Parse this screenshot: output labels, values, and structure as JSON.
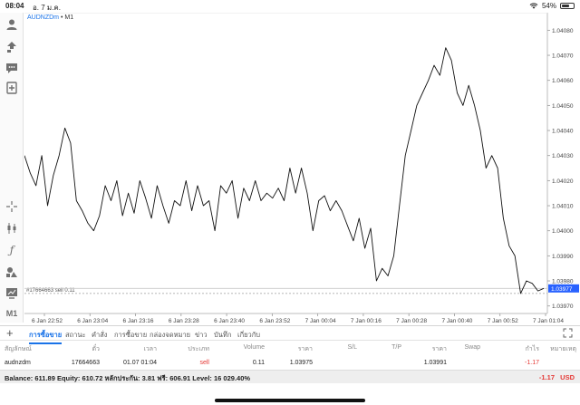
{
  "status": {
    "time": "08:04",
    "date": "อ. 7 ม.ค.",
    "battery": "54%",
    "battery_level": 0.54
  },
  "chart": {
    "symbol": "AUDNZDm",
    "timeframe": "M1",
    "price_labels": [
      "1.04080",
      "1.04070",
      "1.04060",
      "1.04050",
      "1.04040",
      "1.04030",
      "1.04020",
      "1.04010",
      "1.04000",
      "1.03990",
      "1.03980",
      "1.03970"
    ],
    "current_price": "1.03977",
    "order_label": "#17664663 sell 0.11",
    "time_labels": [
      "6 Jan 22:52",
      "6 Jan 23:04",
      "6 Jan 23:16",
      "6 Jan 23:28",
      "6 Jan 23:40",
      "6 Jan 23:52",
      "7 Jan 00:04",
      "7 Jan 00:16",
      "7 Jan 00:28",
      "7 Jan 00:40",
      "7 Jan 00:52",
      "7 Jan 01:04"
    ]
  },
  "chart_data": {
    "type": "line",
    "title": "AUDNZDm • M1",
    "xlabel": "",
    "ylabel": "",
    "ylim": [
      1.03967,
      1.04087
    ],
    "x_start": "6 Jan 22:52",
    "x_end": "7 Jan 01:04",
    "x_tick_labels": [
      "6 Jan 22:52",
      "6 Jan 23:04",
      "6 Jan 23:16",
      "6 Jan 23:28",
      "6 Jan 23:40",
      "6 Jan 23:52",
      "7 Jan 00:04",
      "7 Jan 00:16",
      "7 Jan 00:28",
      "7 Jan 00:40",
      "7 Jan 00:52",
      "7 Jan 01:04"
    ],
    "y_tick_labels": [
      "1.04080",
      "1.04070",
      "1.04060",
      "1.04050",
      "1.04040",
      "1.04030",
      "1.04020",
      "1.04010",
      "1.04000",
      "1.03990",
      "1.03980",
      "1.03970"
    ],
    "series": [
      {
        "values": [
          1.0403,
          1.04023,
          1.04018,
          1.0403,
          1.0401,
          1.04022,
          1.0403,
          1.04041,
          1.04035,
          1.04012,
          1.04008,
          1.04003,
          1.04,
          1.04006,
          1.04018,
          1.04012,
          1.0402,
          1.04006,
          1.04015,
          1.04007,
          1.0402,
          1.04013,
          1.04005,
          1.04018,
          1.0401,
          1.04003,
          1.04012,
          1.0401,
          1.0402,
          1.04008,
          1.04018,
          1.0401,
          1.04012,
          1.04,
          1.04018,
          1.04015,
          1.0402,
          1.04005,
          1.04017,
          1.04012,
          1.0402,
          1.04012,
          1.04015,
          1.04013,
          1.04017,
          1.04012,
          1.04025,
          1.04015,
          1.04025,
          1.04015,
          1.04,
          1.04012,
          1.04014,
          1.04008,
          1.04012,
          1.04008,
          1.04002,
          1.03996,
          1.04005,
          1.03993,
          1.04001,
          1.0398,
          1.03985,
          1.03982,
          1.0399,
          1.0401,
          1.0403,
          1.0404,
          1.0405,
          1.04055,
          1.0406,
          1.04066,
          1.04062,
          1.04073,
          1.04068,
          1.04055,
          1.0405,
          1.04058,
          1.0405,
          1.0404,
          1.04025,
          1.0403,
          1.04025,
          1.04005,
          1.03994,
          1.0399,
          1.03975,
          1.0398,
          1.03979,
          1.03976,
          1.03977
        ]
      }
    ],
    "order_line": 1.03975,
    "current_price": 1.03977,
    "grid": false
  },
  "toolbar": {
    "tabs": [
      "การซื้อขาย",
      "สถานะ",
      "คำสั่ง",
      "การซื้อขาย",
      "กล่องจดหมาย",
      "ข่าว",
      "บันทึก",
      "เกี่ยวกับ"
    ],
    "active_tab": 0
  },
  "table": {
    "headers": {
      "symbol": "สัญลักษณ์",
      "ticket": "ตั๋ว",
      "time": "เวลา",
      "type": "ประเภท",
      "volume": "Volume",
      "price": "ราคา",
      "sl": "S/L",
      "tp": "T/P",
      "cur_price": "ราคา",
      "swap": "Swap",
      "profit": "กำไร",
      "comment": "หมายเหตุ"
    },
    "row": {
      "symbol": "audnzdm",
      "ticket": "17664663",
      "time": "01.07 01:04",
      "type": "sell",
      "volume": "0.11",
      "price": "1.03975",
      "sl": "",
      "tp": "",
      "cur_price": "1.03991",
      "swap": "",
      "profit": "-1.17",
      "comment": ""
    }
  },
  "balance": {
    "text": "Balance: 611.89 Equity: 610.72 หลักประกัน: 3.81 ฟรี: 606.91 Level: 16 029.40%",
    "total": "-1.17",
    "currency": "USD"
  },
  "colors": {
    "accent": "#1a73e8",
    "negative": "#e53935",
    "line": "#111111",
    "price_tag": "#2962ff"
  }
}
